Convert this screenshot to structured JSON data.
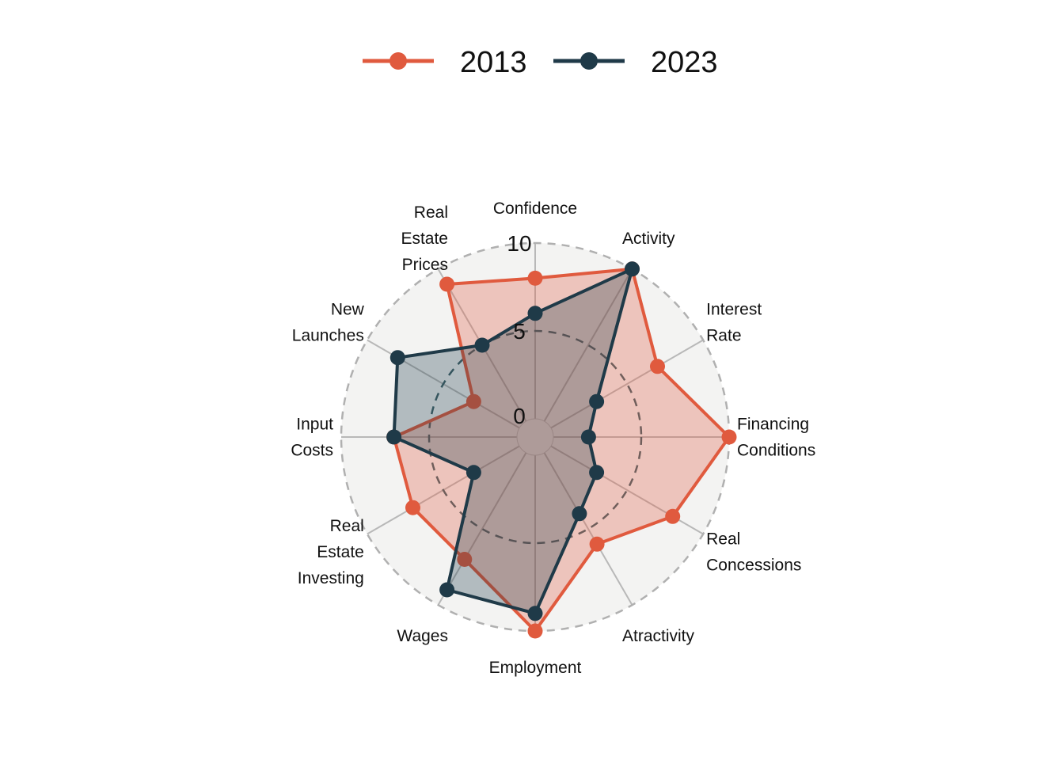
{
  "chart_data": {
    "type": "radar",
    "categories": [
      "Confidence",
      "Activity",
      "Interest Rate",
      "Financing Conditions",
      "Real Concessions",
      "Atractivity",
      "Employment",
      "Wages",
      "Real Estate Investing",
      "Input Costs",
      "New Launches",
      "Real Estate Prices"
    ],
    "series": [
      {
        "name": "2013",
        "values": [
          8,
          10,
          7,
          10,
          8,
          6,
          10,
          7,
          7,
          7,
          3,
          9
        ],
        "color": "#e05a3e",
        "fill": "rgba(224,90,62,0.30)"
      },
      {
        "name": "2023",
        "values": [
          6,
          10,
          3,
          2,
          3,
          4,
          9,
          9,
          3,
          7,
          8,
          5
        ],
        "color": "#1f3a48",
        "fill": "rgba(31,58,72,0.30)"
      }
    ],
    "ylim": [
      0,
      10
    ],
    "ticks": [
      "0",
      "5",
      "10"
    ],
    "grid": true,
    "legend_position": "top-center",
    "background_color": "#f3f3f2"
  }
}
